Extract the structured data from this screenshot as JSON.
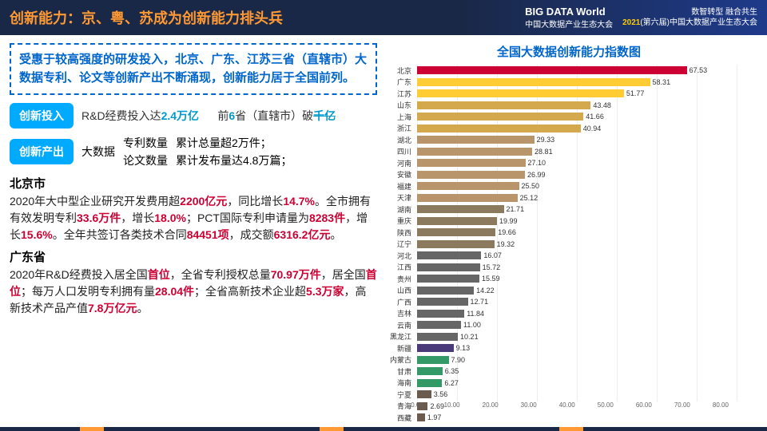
{
  "header": {
    "title": "创新能力：京、粤、苏成为创新能力排头兵",
    "logo_top": "BIG DATA World",
    "logo_sub": "中国大数据产业生态大会",
    "tagline1": "数智转型 融合共生",
    "tagline2_year": "2021",
    "tagline2_rest": "(第六届)中国大数据产业生态大会"
  },
  "summary": "受惠于较高强度的研发投入，北京、广东、江苏三省（直辖市）大数据专利、论文等创新产出不断涌现，创新能力居于全国前列。",
  "input_row": {
    "badge": "创新投入",
    "text_a": "R&D经费投入达",
    "val_a": "2.4万亿",
    "text_b": "前",
    "val_b": "6",
    "text_c": "省（直辖市）破",
    "val_c": "千亿"
  },
  "output_row": {
    "badge": "创新产出",
    "label": "大数据",
    "l1": "专利数量",
    "r1": "累计总量超2万件；",
    "l2": "论文数量",
    "r2": "累计发布量达4.8万篇；"
  },
  "beijing": {
    "title": "北京市",
    "p1a": "2020年大中型企业研究开发费用超",
    "v1": "2200亿元",
    "p1b": "，同比增长",
    "v2": "14.7%",
    "p1c": "。全市拥有有效发明专利",
    "v3": "33.6万件",
    "p1d": "，增长",
    "v4": "18.0%",
    "p1e": "；PCT国际专利申请量为",
    "v5": "8283件",
    "p1f": "，增长",
    "v6": "15.6%",
    "p1g": "。全年共签订各类技术合同",
    "v7": "84451项",
    "p1h": "，成交额",
    "v8": "6316.2亿元",
    "p1i": "。"
  },
  "guangdong": {
    "title": "广东省",
    "p1a": "2020年R&D经费投入居全国",
    "v1": "首位",
    "p1b": "，全省专利授权总量",
    "v2": "70.97万件",
    "p1c": "，居全国",
    "v3": "首位",
    "p1d": "；每万人口发明专利拥有量",
    "v4": "28.04件",
    "p1e": "；全省高新技术企业超",
    "v5": "5.3万家",
    "p1f": "，高新技术产品产值",
    "v6": "7.8万亿元",
    "p1g": "。"
  },
  "chart": {
    "title": "全国大数据创新能力指数图",
    "max": 80,
    "ticks": [
      "0.00",
      "10.00",
      "20.00",
      "30.00",
      "40.00",
      "50.00",
      "60.00",
      "70.00",
      "80.00"
    ],
    "bars": [
      {
        "label": "北京",
        "value": 67.53,
        "color": "#cc0033"
      },
      {
        "label": "广东",
        "value": 58.31,
        "color": "#ffcc33"
      },
      {
        "label": "江苏",
        "value": 51.77,
        "color": "#ffcc33"
      },
      {
        "label": "山东",
        "value": 43.48,
        "color": "#d4a94e"
      },
      {
        "label": "上海",
        "value": 41.66,
        "color": "#d4a94e"
      },
      {
        "label": "浙江",
        "value": 40.94,
        "color": "#d4a94e"
      },
      {
        "label": "湖北",
        "value": 29.33,
        "color": "#b8956b"
      },
      {
        "label": "四川",
        "value": 28.81,
        "color": "#b8956b"
      },
      {
        "label": "河南",
        "value": 27.1,
        "color": "#b8956b"
      },
      {
        "label": "安徽",
        "value": 26.99,
        "color": "#b8956b"
      },
      {
        "label": "福建",
        "value": 25.5,
        "color": "#b8956b"
      },
      {
        "label": "天津",
        "value": 25.12,
        "color": "#b8956b"
      },
      {
        "label": "湖南",
        "value": 21.71,
        "color": "#8b7a5e"
      },
      {
        "label": "重庆",
        "value": 19.99,
        "color": "#8b7a5e"
      },
      {
        "label": "陕西",
        "value": 19.66,
        "color": "#8b7a5e"
      },
      {
        "label": "辽宁",
        "value": 19.32,
        "color": "#8b7a5e"
      },
      {
        "label": "河北",
        "value": 16.07,
        "color": "#666"
      },
      {
        "label": "江西",
        "value": 15.72,
        "color": "#666"
      },
      {
        "label": "贵州",
        "value": 15.59,
        "color": "#666"
      },
      {
        "label": "山西",
        "value": 14.22,
        "color": "#666"
      },
      {
        "label": "广西",
        "value": 12.71,
        "color": "#666"
      },
      {
        "label": "吉林",
        "value": 11.84,
        "color": "#666"
      },
      {
        "label": "云南",
        "value": 11.0,
        "color": "#666"
      },
      {
        "label": "黑龙江",
        "value": 10.21,
        "color": "#666"
      },
      {
        "label": "新疆",
        "value": 9.13,
        "color": "#4a3a7a"
      },
      {
        "label": "内蒙古",
        "value": 7.9,
        "color": "#339966"
      },
      {
        "label": "甘肃",
        "value": 6.35,
        "color": "#339966"
      },
      {
        "label": "海南",
        "value": 6.27,
        "color": "#339966"
      },
      {
        "label": "宁夏",
        "value": 3.56,
        "color": "#6b5a4e"
      },
      {
        "label": "青海",
        "value": 2.69,
        "color": "#6b5a4e"
      },
      {
        "label": "西藏",
        "value": 1.97,
        "color": "#6b5a4e"
      }
    ]
  }
}
